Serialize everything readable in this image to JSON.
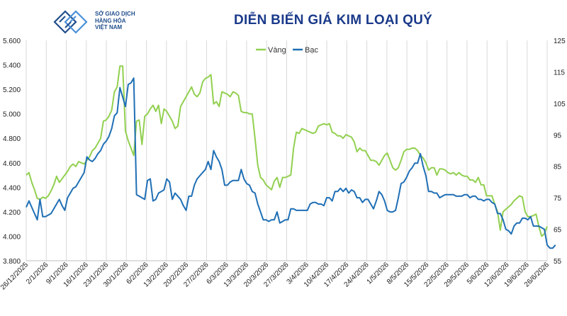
{
  "header": {
    "logo_line1": "SỞ GIAO DỊCH",
    "logo_line2": "HÀNG HÓA",
    "logo_line3": "VIỆT NAM",
    "title": "DIỄN BIẾN GIÁ KIM LOẠI QUÝ"
  },
  "colors": {
    "gold": "#92d050",
    "silver": "#1f6fb5",
    "title": "#1a3a8a",
    "grid": "#d9d9d9"
  },
  "chart_data": {
    "type": "line",
    "title": "DIỄN BIẾN GIÁ KIM LOẠI QUÝ",
    "grid": "vertical",
    "legend_position": "top-center",
    "x_tick_labels": [
      "26/12/2025",
      "2/1/2026",
      "9/1/2026",
      "16/1/2026",
      "23/1/2026",
      "30/1/2026",
      "6/2/2026",
      "13/2/2026",
      "20/2/2026",
      "27/2/2026",
      "6/3/2026",
      "13/3/2026",
      "20/3/2026",
      "27/3/2026",
      "3/4/2026",
      "10/4/2026",
      "17/4/2026",
      "24/4/2026",
      "1/5/2026",
      "8/5/2026",
      "15/5/2026",
      "22/5/2026",
      "29/5/2026",
      "5/6/2026",
      "12/6/2026",
      "19/6/2026",
      "26/6/2026"
    ],
    "y_left": {
      "min": 3800,
      "max": 5600,
      "ticks": [
        "3.800",
        "4.000",
        "4.200",
        "4.400",
        "4.600",
        "4.800",
        "5.000",
        "5.200",
        "5.400",
        "5.600"
      ]
    },
    "y_right": {
      "min": 55,
      "max": 125,
      "ticks": [
        "55",
        "65",
        "75",
        "85",
        "95",
        "105",
        "115",
        "125"
      ]
    },
    "series": [
      {
        "name": "Vàng",
        "axis": "left",
        "values": [
          4500,
          4520,
          4440,
          4380,
          4310,
          4300,
          4320,
          4310,
          4330,
          4370,
          4420,
          4490,
          4440,
          4470,
          4500,
          4530,
          4570,
          4590,
          4570,
          4610,
          4600,
          4590,
          4620,
          4650,
          4700,
          4720,
          4760,
          4800,
          4940,
          4950,
          4980,
          5030,
          5180,
          5220,
          5390,
          5390,
          4860,
          4780,
          4720,
          4660,
          4940,
          4950,
          4750,
          4980,
          5000,
          5040,
          5070,
          5020,
          5070,
          4920,
          5040,
          5020,
          4980,
          4940,
          4880,
          4900,
          5060,
          5100,
          5140,
          5180,
          5220,
          5160,
          5140,
          5170,
          5260,
          5290,
          5300,
          5320,
          5080,
          5100,
          5060,
          5180,
          5170,
          5160,
          5140,
          5180,
          5170,
          5150,
          5020,
          5010,
          5010,
          5000,
          5000,
          4800,
          4580,
          4480,
          4460,
          4420,
          4400,
          4380,
          4450,
          4480,
          4400,
          4480,
          4480,
          4490,
          4500,
          4720,
          4850,
          4840,
          4880,
          4870,
          4860,
          4850,
          4840,
          4850,
          4900,
          4910,
          4920,
          4910,
          4920,
          4850,
          4840,
          4820,
          4820,
          4800,
          4830,
          4820,
          4810,
          4770,
          4690,
          4720,
          4700,
          4700,
          4660,
          4620,
          4620,
          4610,
          4580,
          4620,
          4660,
          4680,
          4620,
          4560,
          4540,
          4560,
          4620,
          4690,
          4710,
          4710,
          4720,
          4720,
          4700,
          4660,
          4640,
          4600,
          4540,
          4560,
          4560,
          4500,
          4550,
          4550,
          4540,
          4520,
          4510,
          4520,
          4500,
          4520,
          4500,
          4490,
          4490,
          4460,
          4460,
          4440,
          4480,
          4420,
          4420,
          4330,
          4330,
          4330,
          4260,
          4200,
          4050,
          4200,
          4220,
          4240,
          4260,
          4290,
          4310,
          4330,
          4320,
          4200,
          4160,
          4160,
          4170,
          4180,
          4080,
          4000,
          4020,
          4080
        ]
      },
      {
        "name": "Bạc",
        "axis": "right",
        "values": [
          72.0,
          74.0,
          72.0,
          70.0,
          68.0,
          74.5,
          69.0,
          69.0,
          69.5,
          70.0,
          71.5,
          73.0,
          74.5,
          72.5,
          71.0,
          75.0,
          76.5,
          78.0,
          78.5,
          80.0,
          81.5,
          83.0,
          88.0,
          87.0,
          86.5,
          87.5,
          89.0,
          90.0,
          92.0,
          93.0,
          94.5,
          97.0,
          101.0,
          102.0,
          110.0,
          107.0,
          104.0,
          111.0,
          111.5,
          113.0,
          76.0,
          75.5,
          75.0,
          74.5,
          80.5,
          81.0,
          74.0,
          74.5,
          76.5,
          77.0,
          77.5,
          81.0,
          80.0,
          74.5,
          76.5,
          75.5,
          74.5,
          72.5,
          71.0,
          75.5,
          75.5,
          79.0,
          81.0,
          82.0,
          83.0,
          84.0,
          86.5,
          84.0,
          90.0,
          88.0,
          86.5,
          84.0,
          79.0,
          79.0,
          80.0,
          80.5,
          80.5,
          80.5,
          84.0,
          81.0,
          79.5,
          79.0,
          77.0,
          76.5,
          73.0,
          70.5,
          68.0,
          68.0,
          67.5,
          68.0,
          68.0,
          70.5,
          67.0,
          67.5,
          68.0,
          68.0,
          71.5,
          71.5,
          71.0,
          71.0,
          71.0,
          71.0,
          71.0,
          73.0,
          73.5,
          73.5,
          73.0,
          73.0,
          72.5,
          75.0,
          75.0,
          74.0,
          77.0,
          77.0,
          78.0,
          77.0,
          78.0,
          76.5,
          77.5,
          77.0,
          75.0,
          75.0,
          73.5,
          74.5,
          74.5,
          73.0,
          71.5,
          74.0,
          77.0,
          76.0,
          74.0,
          71.0,
          70.5,
          70.5,
          71.0,
          75.0,
          79.5,
          80.0,
          81.5,
          83.5,
          84.5,
          86.0,
          86.0,
          89.0,
          85.0,
          82.0,
          77.0,
          77.0,
          76.5,
          76.5,
          75.0,
          75.5,
          76.0,
          76.0,
          76.0,
          76.0,
          75.5,
          75.5,
          75.5,
          76.0,
          76.0,
          75.0,
          75.5,
          75.5,
          74.5,
          74.5,
          74.0,
          74.5,
          74.5,
          73.5,
          73.0,
          70.0,
          70.0,
          68.0,
          65.0,
          64.5,
          63.5,
          66.0,
          67.0,
          67.0,
          68.5,
          68.5,
          68.0,
          69.0,
          66.0,
          66.0,
          66.0,
          65.5,
          65.0,
          60.0,
          59.0,
          59.0,
          60.0
        ]
      }
    ]
  }
}
